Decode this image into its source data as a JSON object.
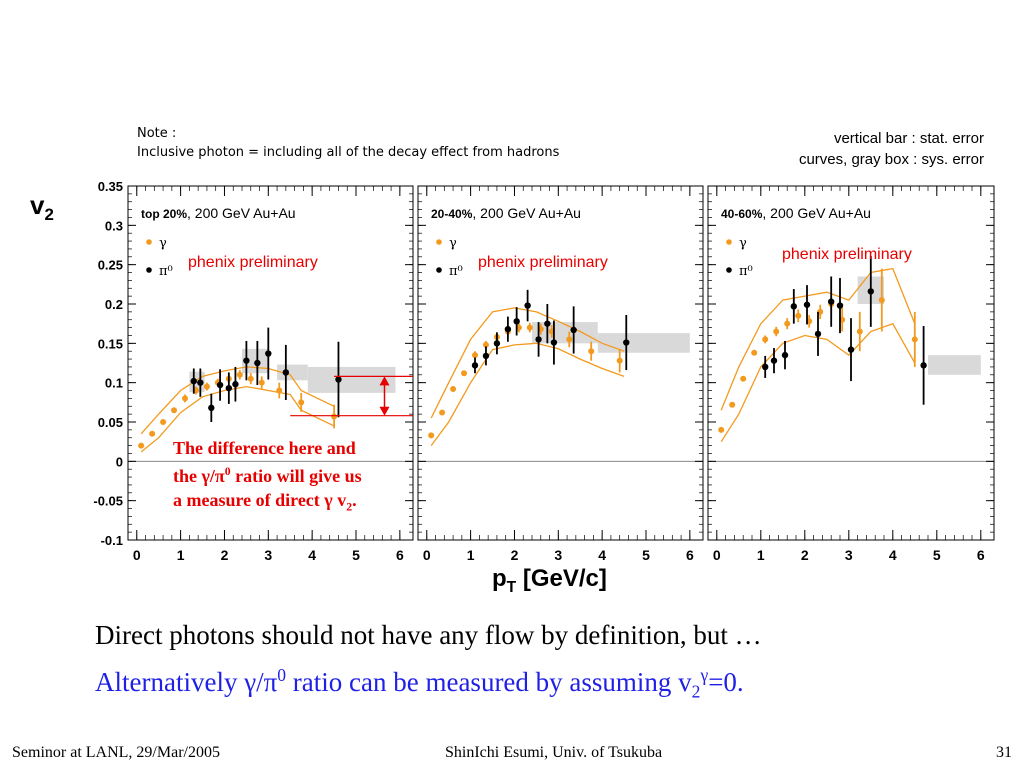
{
  "note": {
    "line1": "Note :",
    "line2": "Inclusive photon = including all of the decay effect from hadrons"
  },
  "error_note": {
    "line1": "vertical bar : stat. error",
    "line2": "curves, gray box : sys. error"
  },
  "y_axis_label": "v",
  "y_axis_label_sub": "2",
  "x_axis_label": "p",
  "x_axis_label_sub": "T",
  "x_axis_label_unit": " [GeV/c]",
  "callout": {
    "l1": "The difference here and",
    "l2a": "the γ/π",
    "l2sup": "0",
    "l2b": " ratio will give us",
    "l3a": "a measure of direct γ v",
    "l3sub": "2",
    "l3b": "."
  },
  "body": {
    "line1": "Direct photons should not have any flow by definition, but …",
    "line2a": "Alternatively γ/π",
    "line2sup": "0",
    "line2b": " ratio can be measured by assuming v",
    "line2sub": "2",
    "line2sup2": "γ",
    "line2c": "=0."
  },
  "footer": {
    "left": "Seminor at LANL, 29/Mar/2005",
    "center": "ShinIchi Esumi, Univ. of Tsukuba",
    "right": "31"
  },
  "colors": {
    "gamma": "#f39a1e",
    "pi0": "#000000",
    "preliminary": "#e60000",
    "sys_box": "#d9d9d9",
    "callout": "#e60000",
    "alt_text": "#1f1fe6"
  },
  "chart_data": [
    {
      "type": "scatter",
      "panel_label": "top 20%",
      "panel_suffix": ", 200 GeV Au+Au",
      "watermark": "phenix preliminary",
      "xlim": [
        -0.2,
        6.3
      ],
      "ylim": [
        -0.1,
        0.35
      ],
      "xticks": [
        "0",
        "1",
        "2",
        "3",
        "4",
        "5",
        "6"
      ],
      "yticks": [
        "-0.1",
        "-0.05",
        "0",
        "0.05",
        "0.1",
        "0.15",
        "0.2",
        "0.25",
        "0.3",
        "0.35"
      ],
      "series": [
        {
          "name": "γ",
          "x": [
            0.1,
            0.35,
            0.6,
            0.85,
            1.1,
            1.35,
            1.6,
            1.85,
            2.1,
            2.35,
            2.6,
            2.85,
            3.25,
            3.75,
            4.5
          ],
          "y": [
            0.02,
            0.035,
            0.05,
            0.065,
            0.08,
            0.09,
            0.095,
            0.1,
            0.105,
            0.11,
            0.105,
            0.1,
            0.09,
            0.075,
            0.057
          ],
          "err": [
            0.0,
            0.0,
            0.0,
            0.0,
            0.005,
            0.005,
            0.005,
            0.005,
            0.006,
            0.006,
            0.007,
            0.008,
            0.01,
            0.012,
            0.015
          ]
        },
        {
          "name": "π⁰",
          "x": [
            1.3,
            1.45,
            1.7,
            1.9,
            2.1,
            2.25,
            2.5,
            2.75,
            3.0,
            3.4,
            4.6
          ],
          "y": [
            0.102,
            0.1,
            0.068,
            0.097,
            0.093,
            0.098,
            0.128,
            0.125,
            0.137,
            0.113,
            0.104
          ],
          "err": [
            0.016,
            0.018,
            0.018,
            0.02,
            0.02,
            0.022,
            0.025,
            0.028,
            0.033,
            0.035,
            0.048
          ]
        }
      ],
      "sys_curves": {
        "x": [
          0.1,
          0.5,
          1.0,
          1.5,
          2.0,
          2.5,
          3.0,
          3.5,
          3.75,
          4.5
        ],
        "upper": [
          0.035,
          0.06,
          0.09,
          0.108,
          0.115,
          0.12,
          0.118,
          0.11,
          0.09,
          0.07
        ],
        "lower": [
          0.012,
          0.03,
          0.062,
          0.082,
          0.09,
          0.095,
          0.09,
          0.085,
          0.065,
          0.045
        ]
      },
      "sys_boxes": [
        {
          "x0": 1.2,
          "x1": 1.55,
          "y0": 0.088,
          "y1": 0.114
        },
        {
          "x0": 2.4,
          "x1": 3.0,
          "y0": 0.112,
          "y1": 0.143
        },
        {
          "x0": 3.2,
          "x1": 3.9,
          "y0": 0.103,
          "y1": 0.123
        },
        {
          "x0": 3.9,
          "x1": 5.9,
          "y0": 0.087,
          "y1": 0.12
        }
      ],
      "arrow": {
        "x": 5.65,
        "y_top": 0.108,
        "y_bottom": 0.058,
        "x_from_top": 4.5,
        "x_from_bottom": 3.5
      }
    },
    {
      "type": "scatter",
      "panel_label": "20-40%",
      "panel_suffix": ", 200 GeV Au+Au",
      "watermark": "phenix preliminary",
      "xlim": [
        -0.2,
        6.3
      ],
      "ylim": [
        -0.1,
        0.35
      ],
      "xticks": [
        "0",
        "1",
        "2",
        "3",
        "4",
        "5",
        "6"
      ],
      "series": [
        {
          "name": "γ",
          "x": [
            0.1,
            0.35,
            0.6,
            0.85,
            1.1,
            1.35,
            1.6,
            1.85,
            2.1,
            2.35,
            2.6,
            2.85,
            3.25,
            3.75,
            4.4
          ],
          "y": [
            0.033,
            0.062,
            0.092,
            0.112,
            0.135,
            0.148,
            0.158,
            0.165,
            0.17,
            0.17,
            0.168,
            0.165,
            0.155,
            0.14,
            0.128
          ],
          "err": [
            0.0,
            0.0,
            0.0,
            0.0,
            0.005,
            0.005,
            0.005,
            0.005,
            0.006,
            0.006,
            0.007,
            0.008,
            0.01,
            0.012,
            0.015
          ]
        },
        {
          "name": "π⁰",
          "x": [
            1.1,
            1.35,
            1.6,
            1.85,
            2.05,
            2.3,
            2.55,
            2.75,
            2.9,
            3.35,
            4.55
          ],
          "y": [
            0.122,
            0.134,
            0.15,
            0.168,
            0.178,
            0.198,
            0.155,
            0.175,
            0.151,
            0.167,
            0.151
          ],
          "err": [
            0.01,
            0.012,
            0.014,
            0.016,
            0.018,
            0.02,
            0.022,
            0.025,
            0.028,
            0.03,
            0.035
          ]
        }
      ],
      "sys_curves": {
        "x": [
          0.1,
          0.5,
          1.0,
          1.5,
          2.0,
          2.5,
          3.0,
          3.5,
          4.0,
          4.5
        ],
        "upper": [
          0.055,
          0.1,
          0.155,
          0.19,
          0.195,
          0.19,
          0.178,
          0.165,
          0.15,
          0.14
        ],
        "lower": [
          0.02,
          0.05,
          0.1,
          0.142,
          0.148,
          0.15,
          0.143,
          0.13,
          0.118,
          0.108
        ]
      },
      "sys_boxes": [
        {
          "x0": 2.4,
          "x1": 3.9,
          "y0": 0.15,
          "y1": 0.177
        },
        {
          "x0": 3.9,
          "x1": 6.0,
          "y0": 0.138,
          "y1": 0.163
        }
      ]
    },
    {
      "type": "scatter",
      "panel_label": "40-60%",
      "panel_suffix": ", 200 GeV Au+Au",
      "watermark": "phenix preliminary",
      "xlim": [
        -0.2,
        6.3
      ],
      "ylim": [
        -0.1,
        0.35
      ],
      "xticks": [
        "0",
        "1",
        "2",
        "3",
        "4",
        "5",
        "6"
      ],
      "series": [
        {
          "name": "γ",
          "x": [
            0.1,
            0.35,
            0.6,
            0.85,
            1.1,
            1.35,
            1.6,
            1.85,
            2.1,
            2.35,
            2.6,
            2.85,
            3.25,
            3.75,
            4.5
          ],
          "y": [
            0.04,
            0.072,
            0.105,
            0.138,
            0.155,
            0.165,
            0.175,
            0.185,
            0.178,
            0.19,
            0.2,
            0.18,
            0.165,
            0.205,
            0.155
          ],
          "err": [
            0.0,
            0.0,
            0.0,
            0.0,
            0.005,
            0.006,
            0.007,
            0.008,
            0.008,
            0.009,
            0.012,
            0.015,
            0.025,
            0.04,
            0.035
          ]
        },
        {
          "name": "π⁰",
          "x": [
            1.1,
            1.3,
            1.55,
            1.75,
            2.05,
            2.3,
            2.6,
            2.8,
            3.05,
            3.5,
            4.7
          ],
          "y": [
            0.12,
            0.128,
            0.135,
            0.197,
            0.199,
            0.162,
            0.203,
            0.198,
            0.142,
            0.216,
            0.122
          ],
          "err": [
            0.014,
            0.016,
            0.018,
            0.022,
            0.025,
            0.028,
            0.032,
            0.035,
            0.04,
            0.045,
            0.05
          ]
        }
      ],
      "sys_curves": {
        "x": [
          0.1,
          0.5,
          1.0,
          1.5,
          2.0,
          2.5,
          3.0,
          3.5,
          4.0,
          4.5
        ],
        "upper": [
          0.065,
          0.12,
          0.175,
          0.205,
          0.21,
          0.215,
          0.205,
          0.24,
          0.245,
          0.175
        ],
        "lower": [
          0.025,
          0.06,
          0.12,
          0.15,
          0.16,
          0.155,
          0.135,
          0.165,
          0.175,
          0.125
        ]
      },
      "sys_boxes": [
        {
          "x0": 3.2,
          "x1": 3.8,
          "y0": 0.2,
          "y1": 0.235
        },
        {
          "x0": 4.8,
          "x1": 6.0,
          "y0": 0.11,
          "y1": 0.135
        }
      ]
    }
  ]
}
